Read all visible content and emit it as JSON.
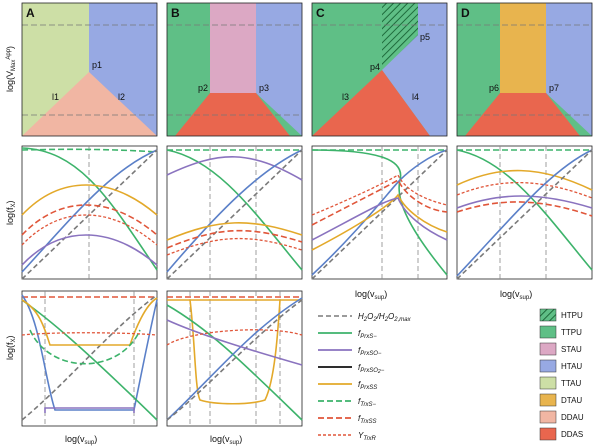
{
  "panels": {
    "A": {
      "label": "A",
      "points": [
        "p1"
      ],
      "lines": [
        "l1",
        "l2"
      ]
    },
    "B": {
      "label": "B",
      "points": [
        "p2",
        "p3"
      ]
    },
    "C": {
      "label": "C",
      "points": [
        "p4",
        "p5"
      ],
      "lines": [
        "l3",
        "l4"
      ]
    },
    "D": {
      "label": "D",
      "points": [
        "p6",
        "p7"
      ]
    }
  },
  "axes": {
    "top_y": "log(vₘₐₓᴬᵖᵖ)",
    "top_y_main": "log(V",
    "top_y_sub": "Max",
    "top_y_sup": "App",
    "mid_y": "log(f",
    "mid_y_sub": "X",
    "x": "log(v",
    "x_sub": "sup"
  },
  "legend_lines": [
    {
      "id": "h2o2",
      "label": "H2O2/H2O2,max",
      "color": "#7a7a7a",
      "dash": "6,3"
    },
    {
      "id": "prxs",
      "label": "fPrxS−",
      "color": "#3db36b",
      "dash": ""
    },
    {
      "id": "prxso",
      "label": "fPrxSO−",
      "color": "#8a73bf",
      "dash": ""
    },
    {
      "id": "prxso2",
      "label": "fPrxSO2−",
      "color": "#111111",
      "dash": ""
    },
    {
      "id": "prxss",
      "label": "fPrxSS",
      "color": "#e3a92a",
      "dash": ""
    },
    {
      "id": "trxs",
      "label": "fTrxS−",
      "color": "#3db36b",
      "dash": "6,3"
    },
    {
      "id": "trxss",
      "label": "fTrxSS",
      "color": "#e0563a",
      "dash": "6,3"
    },
    {
      "id": "trxr",
      "label": "YTrxR",
      "color": "#e0563a",
      "dash": "3,2"
    }
  ],
  "legend_regions": [
    {
      "id": "htpu",
      "label": "HTPU",
      "color": "hatch"
    },
    {
      "id": "ttpu",
      "label": "TTPU",
      "color": "#5fbf86"
    },
    {
      "id": "stau",
      "label": "STAU",
      "color": "#dca8c4"
    },
    {
      "id": "htau",
      "label": "HTAU",
      "color": "#97a9e3"
    },
    {
      "id": "ttau",
      "label": "TTAU",
      "color": "#cddfa6"
    },
    {
      "id": "dtau",
      "label": "DTAU",
      "color": "#e8b44e"
    },
    {
      "id": "ddau",
      "label": "DDAU",
      "color": "#f1b6a3"
    },
    {
      "id": "ddas",
      "label": "DDAS",
      "color": "#e9664e"
    }
  ],
  "colors": {
    "green": "#3db36b",
    "purple": "#8a73bf",
    "blue": "#5b80c8",
    "orange": "#e3a92a",
    "red": "#e0563a",
    "gray": "#7a7a7a"
  }
}
